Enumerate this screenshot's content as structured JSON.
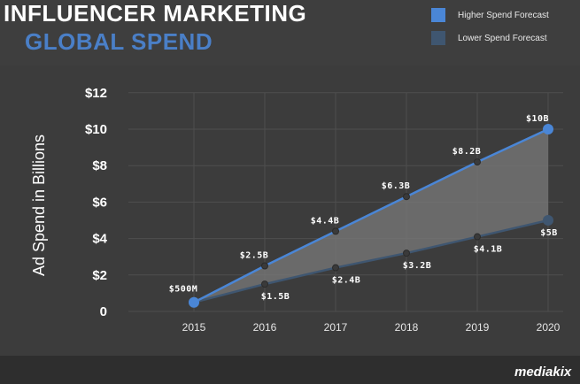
{
  "header": {
    "title_line1": "INFLUENCER MARKETING",
    "title_line2": "GLOBAL SPEND"
  },
  "legend": [
    {
      "label": "Higher Spend Forecast",
      "color": "#4a86d6"
    },
    {
      "label": "Lower Spend Forecast",
      "color": "#3f5670"
    }
  ],
  "branding": {
    "logo_text": "mediakix"
  },
  "colors": {
    "title_accent": "#4a7fc7",
    "higher_line": "#4a86d6",
    "lower_line": "#3f5670",
    "range_fill": "#7a7a7a"
  },
  "chart_data": {
    "type": "line",
    "title": "INFLUENCER MARKETING GLOBAL SPEND",
    "xlabel": "",
    "ylabel": "Ad Spend in Billions",
    "x": [
      "2015",
      "2016",
      "2017",
      "2018",
      "2019",
      "2020"
    ],
    "ylim": [
      0,
      12
    ],
    "yticks": [
      0,
      2,
      4,
      6,
      8,
      10,
      12
    ],
    "ytick_labels": [
      "0",
      "$2",
      "$4",
      "$6",
      "$8",
      "$10",
      "$12"
    ],
    "grid": "horizontal",
    "legend_position": "top-right",
    "series": [
      {
        "name": "Higher Spend Forecast",
        "values": [
          0.5,
          2.5,
          4.4,
          6.3,
          8.2,
          10
        ],
        "labels": [
          "$500M",
          "$2.5B",
          "$4.4B",
          "$6.3B",
          "$8.2B",
          "$10B"
        ]
      },
      {
        "name": "Lower Spend Forecast",
        "values": [
          0.5,
          1.5,
          2.4,
          3.2,
          4.1,
          5
        ],
        "labels": [
          "",
          "$1.5B",
          "$2.4B",
          "$3.2B",
          "$4.1B",
          "$5B"
        ]
      }
    ]
  }
}
